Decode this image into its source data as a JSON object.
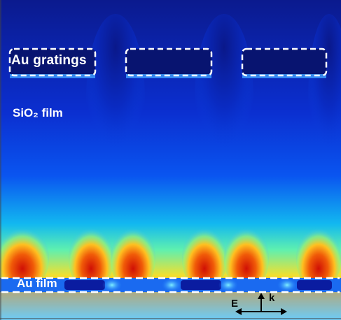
{
  "labels": {
    "au_gratings": "Au gratings",
    "sio2_film": "SiO₂ film",
    "au_film": "Au film",
    "e_field": "E",
    "k_vector": "k"
  },
  "colors": {
    "background": "#0a1ea8",
    "dashed_outline": "#ffffff",
    "arrow": "#000000"
  },
  "legend": {
    "polarization": "E",
    "propagation": "k"
  }
}
